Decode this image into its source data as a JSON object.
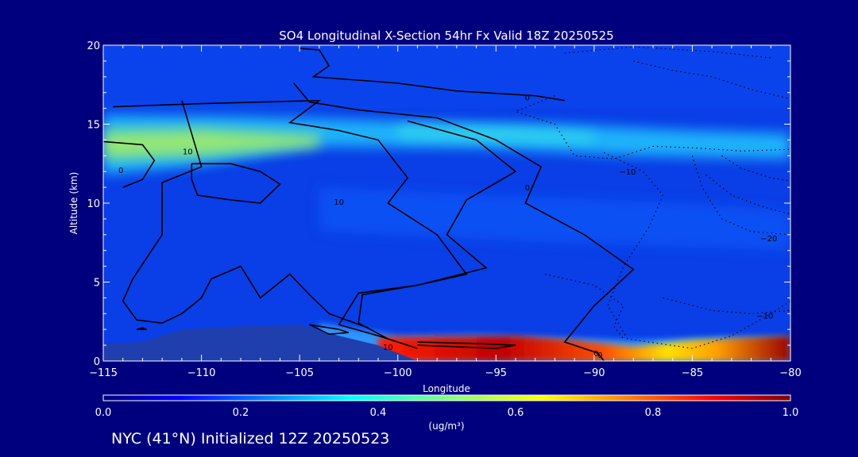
{
  "chart_data": {
    "type": "heatmap",
    "title": "SO4 Longitudinal X-Section 54hr  Fx Valid 18Z 20250525",
    "xlabel": "Longitude",
    "ylabel": "Altitude (km)",
    "xlim": [
      -115,
      -80
    ],
    "ylim": [
      0,
      20
    ],
    "x_ticks": [
      -115,
      -110,
      -105,
      -100,
      -95,
      -90,
      -85,
      -80
    ],
    "x_tick_labels": [
      "−115",
      "−110",
      "−105",
      "−100",
      "−95",
      "−90",
      "−85",
      "−80"
    ],
    "y_ticks": [
      0,
      5,
      10,
      15,
      20
    ],
    "y_tick_labels": [
      "0",
      "5",
      "10",
      "15",
      "20"
    ],
    "colorbar": {
      "min": 0.0,
      "max": 1.0,
      "ticks": [
        0.0,
        0.2,
        0.4,
        0.6,
        0.8,
        1.0
      ],
      "tick_labels": [
        "0.0",
        "0.2",
        "0.4",
        "0.6",
        "0.8",
        "1.0"
      ],
      "units_label": "(ug/m³)",
      "colormap": "jet"
    },
    "field": {
      "description_units": "ug/m3",
      "features": [
        {
          "region": "upper-tropospheric layer",
          "lon_range": [
            -115,
            -80
          ],
          "alt_km": [
            12.5,
            15.5
          ],
          "peak_value": 0.5
        },
        {
          "region": "boundary layer east",
          "lon_range": [
            -101,
            -80
          ],
          "alt_km": [
            0,
            1.5
          ],
          "peak_value": 1.0
        },
        {
          "region": "background",
          "lon_range": [
            -115,
            -80
          ],
          "alt_km": [
            0,
            20
          ],
          "peak_value": 0.15
        }
      ]
    },
    "contour_labels": [
      "0",
      "10",
      "0",
      "10",
      "0",
      "10",
      "0",
      "0",
      "−10",
      "−20",
      "−10"
    ],
    "contour_colors": {
      "positive": "#000000",
      "negative_dotted": "#000000"
    }
  },
  "footer": {
    "text": "NYC (41°N) Initialized 12Z 20250523"
  },
  "colors": {
    "background": "#00007f",
    "foreground": "#ffffff"
  }
}
